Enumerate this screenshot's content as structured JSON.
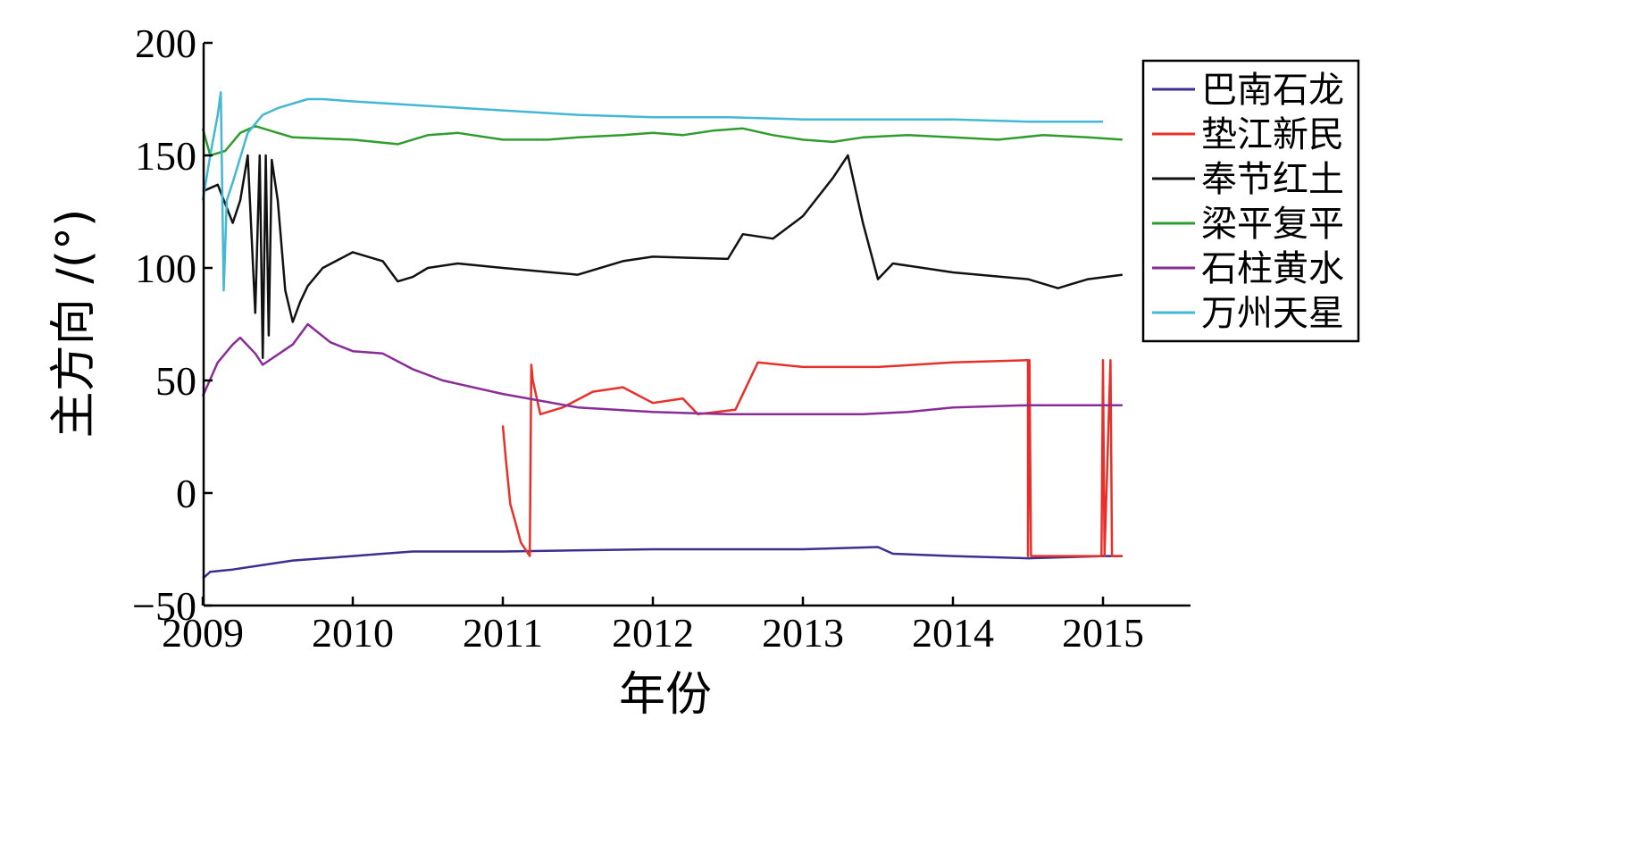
{
  "chart_data": {
    "type": "line",
    "xlabel": "年份",
    "ylabel": "主方向 /(°)",
    "xlim": [
      2009,
      2015.6
    ],
    "ylim": [
      -50,
      200
    ],
    "x_ticks": [
      2009,
      2010,
      2011,
      2012,
      2013,
      2014,
      2015
    ],
    "y_ticks": [
      -50,
      0,
      50,
      100,
      150,
      200
    ],
    "y_tick_labels": [
      "−50",
      "0",
      "50",
      "100",
      "150",
      "200"
    ],
    "grid": false,
    "legend_position": "top-right",
    "series": [
      {
        "name": "巴南石龙",
        "color": "#3b2f8f",
        "x": [
          2009.0,
          2009.05,
          2009.2,
          2009.4,
          2009.6,
          2009.8,
          2010.0,
          2010.2,
          2010.4,
          2011.0,
          2012.0,
          2013.0,
          2013.5,
          2013.6,
          2014.0,
          2014.5,
          2015.0,
          2015.13
        ],
        "y": [
          -38,
          -35,
          -34,
          -32,
          -30,
          -29,
          -28,
          -27,
          -26,
          -26,
          -25,
          -25,
          -24,
          -27,
          -28,
          -29,
          -28,
          -28
        ]
      },
      {
        "name": "垫江新民",
        "color": "#e8302a",
        "x": [
          2011.0,
          2011.02,
          2011.05,
          2011.08,
          2011.12,
          2011.18,
          2011.19,
          2011.2,
          2011.25,
          2011.4,
          2011.6,
          2011.8,
          2012.0,
          2012.2,
          2012.3,
          2012.55,
          2012.7,
          2013.0,
          2013.5,
          2014.0,
          2014.5,
          2014.5,
          2014.51,
          2014.52,
          2014.7,
          2014.99,
          2015.0,
          2015.01,
          2015.05,
          2015.06,
          2015.1,
          2015.13
        ],
        "y": [
          30,
          15,
          -5,
          -12,
          -22,
          -28,
          57,
          50,
          35,
          38,
          45,
          47,
          40,
          42,
          35,
          37,
          58,
          56,
          56,
          58,
          59,
          -28,
          59,
          -28,
          -28,
          -28,
          59,
          -28,
          59,
          -28,
          -28,
          -28
        ]
      },
      {
        "name": "奉节红土",
        "color": "#111111",
        "x": [
          2009.0,
          2009.1,
          2009.2,
          2009.25,
          2009.3,
          2009.35,
          2009.38,
          2009.4,
          2009.42,
          2009.44,
          2009.46,
          2009.5,
          2009.55,
          2009.6,
          2009.65,
          2009.7,
          2009.8,
          2010.0,
          2010.2,
          2010.3,
          2010.4,
          2010.5,
          2010.7,
          2011.0,
          2011.5,
          2011.8,
          2012.0,
          2012.5,
          2012.6,
          2012.8,
          2013.0,
          2013.2,
          2013.3,
          2013.4,
          2013.5,
          2013.6,
          2014.0,
          2014.5,
          2014.7,
          2014.8,
          2014.9,
          2015.13
        ],
        "y": [
          134,
          137,
          120,
          130,
          150,
          80,
          150,
          60,
          150,
          70,
          148,
          130,
          90,
          76,
          85,
          92,
          100,
          107,
          103,
          94,
          96,
          100,
          102,
          100,
          97,
          103,
          105,
          104,
          115,
          113,
          123,
          140,
          150,
          120,
          95,
          102,
          98,
          95,
          91,
          93,
          95,
          97
        ]
      },
      {
        "name": "梁平复平",
        "color": "#2e9d2e",
        "x": [
          2009.0,
          2009.05,
          2009.15,
          2009.25,
          2009.35,
          2009.5,
          2009.6,
          2010.0,
          2010.3,
          2010.5,
          2010.7,
          2011.0,
          2011.3,
          2011.5,
          2011.8,
          2012.0,
          2012.2,
          2012.4,
          2012.6,
          2012.8,
          2013.0,
          2013.2,
          2013.4,
          2013.7,
          2014.0,
          2014.3,
          2014.6,
          2014.9,
          2015.13
        ],
        "y": [
          162,
          150,
          152,
          160,
          163,
          160,
          158,
          157,
          155,
          159,
          160,
          157,
          157,
          158,
          159,
          160,
          159,
          161,
          162,
          159,
          157,
          156,
          158,
          159,
          158,
          157,
          159,
          158,
          157
        ]
      },
      {
        "name": "石柱黄水",
        "color": "#8a2c96",
        "x": [
          2009.0,
          2009.1,
          2009.2,
          2009.25,
          2009.35,
          2009.4,
          2009.6,
          2009.7,
          2009.85,
          2010.0,
          2010.2,
          2010.4,
          2010.6,
          2011.0,
          2011.5,
          2012.0,
          2012.5,
          2013.0,
          2013.4,
          2013.7,
          2014.0,
          2014.5,
          2015.13
        ],
        "y": [
          43,
          58,
          66,
          69,
          62,
          57,
          66,
          75,
          67,
          63,
          62,
          55,
          50,
          44,
          38,
          36,
          35,
          35,
          35,
          36,
          38,
          39,
          39
        ]
      },
      {
        "name": "万州天星",
        "color": "#43b7d4",
        "x": [
          2009.0,
          2009.05,
          2009.1,
          2009.12,
          2009.14,
          2009.16,
          2009.2,
          2009.3,
          2009.4,
          2009.5,
          2009.6,
          2009.7,
          2009.8,
          2010.0,
          2010.5,
          2011.0,
          2011.5,
          2012.0,
          2012.5,
          2013.0,
          2013.5,
          2014.0,
          2014.5,
          2015.0
        ],
        "y": [
          130,
          150,
          168,
          178,
          90,
          130,
          138,
          160,
          168,
          171,
          173,
          175,
          175,
          174,
          172,
          170,
          168,
          167,
          167,
          166,
          166,
          166,
          165,
          165
        ]
      }
    ]
  }
}
